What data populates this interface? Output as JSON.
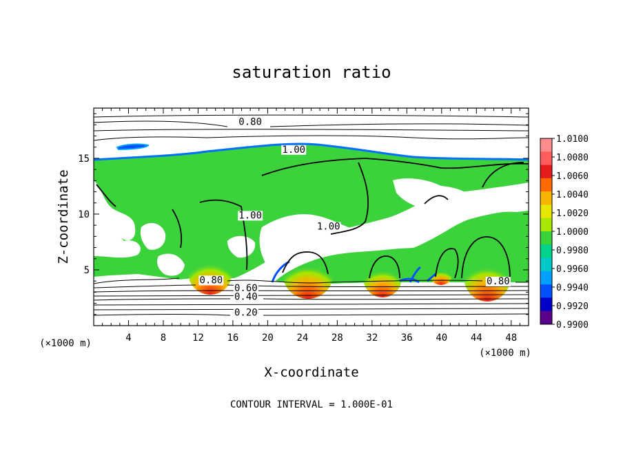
{
  "chart_data": {
    "type": "heatmap",
    "title": "saturation ratio",
    "xlabel": "X-coordinate",
    "ylabel": "Z-coordinate",
    "x_unit": "(×1000 m)",
    "z_unit": "(×1000 m)",
    "xlim": [
      0,
      50
    ],
    "ylim": [
      0,
      19.5
    ],
    "x_ticks": [
      4,
      8,
      12,
      16,
      20,
      24,
      28,
      32,
      36,
      40,
      44,
      48
    ],
    "y_ticks": [
      5,
      10,
      15
    ],
    "colorbar": {
      "levels": [
        "1.0100",
        "1.0080",
        "1.0060",
        "1.0040",
        "1.0020",
        "1.0000",
        "0.9980",
        "0.9960",
        "0.9940",
        "0.9920",
        "0.9900"
      ],
      "colors": [
        "#ff8c8c",
        "#ff5c5c",
        "#e41c1c",
        "#ff6a00",
        "#f6b400",
        "#e6e600",
        "#a6e600",
        "#3cd23c",
        "#00d28c",
        "#00c8c8",
        "#00a0ff",
        "#0050ff",
        "#0000c8",
        "#5a008c"
      ]
    },
    "contour_labels": [
      {
        "text": "0.80",
        "x": 18,
        "z": 18.0
      },
      {
        "text": "1.00",
        "x": 23,
        "z": 15.5
      },
      {
        "text": "1.00",
        "x": 18,
        "z": 9.6
      },
      {
        "text": "1.00",
        "x": 27,
        "z": 8.6
      },
      {
        "text": "0.80",
        "x": 13.5,
        "z": 3.8
      },
      {
        "text": "0.80",
        "x": 46.5,
        "z": 3.7
      },
      {
        "text": "0.60",
        "x": 17.5,
        "z": 3.1
      },
      {
        "text": "0.40",
        "x": 17.5,
        "z": 2.3
      },
      {
        "text": "0.20",
        "x": 17.5,
        "z": 0.9
      }
    ],
    "footer": "CONTOUR INTERVAL = 1.000E-01"
  }
}
